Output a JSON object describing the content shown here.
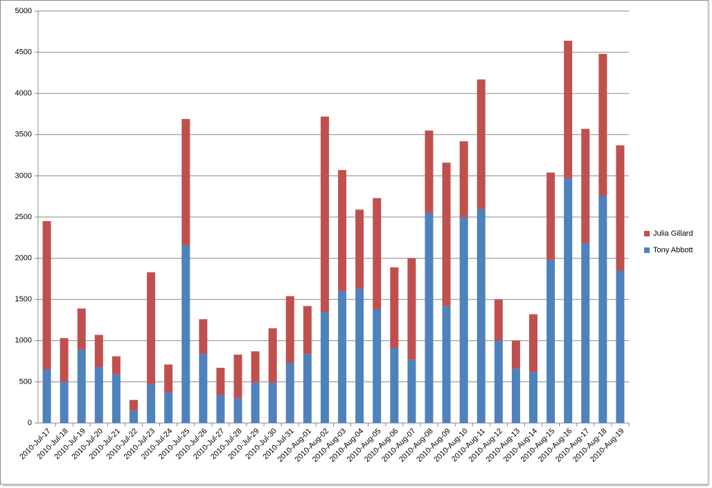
{
  "chart_data": {
    "type": "stacked_bar",
    "categories": [
      "2010-Jul-17",
      "2010-Jul-18",
      "2010-Jul-19",
      "2010-Jul-20",
      "2010-Jul-21",
      "2010-Jul-22",
      "2010-Jul-23",
      "2010-Jul-24",
      "2010-Jul-25",
      "2010-Jul-26",
      "2010-Jul-27",
      "2010-Jul-28",
      "2010-Jul-29",
      "2010-Jul-30",
      "2010-Jul-31",
      "2010-Aug-01",
      "2010-Aug-02",
      "2010-Aug-03",
      "2010-Aug-04",
      "2010-Aug-05",
      "2010-Aug-06",
      "2010-Aug-07",
      "2010-Aug-08",
      "2010-Aug-09",
      "2010-Aug-10",
      "2010-Aug-11",
      "2010-Aug-12",
      "2010-Aug-13",
      "2010-Aug-14",
      "2010-Aug-15",
      "2010-Aug-16",
      "2010-Aug-17",
      "2010-Aug-18",
      "2010-Aug-19"
    ],
    "series": [
      {
        "name": "Tony Abbott",
        "color": "#4f81bd",
        "values": [
          650,
          500,
          890,
          680,
          590,
          150,
          470,
          370,
          2160,
          840,
          340,
          300,
          490,
          490,
          730,
          840,
          1350,
          1600,
          1630,
          1380,
          910,
          770,
          2550,
          1420,
          2500,
          2600,
          1000,
          660,
          620,
          1980,
          2970,
          2180,
          2760,
          1850
        ]
      },
      {
        "name": "Julia Gillard",
        "color": "#c0504d",
        "values": [
          1800,
          530,
          500,
          390,
          220,
          130,
          1360,
          340,
          1530,
          420,
          330,
          530,
          380,
          660,
          810,
          580,
          2370,
          1470,
          960,
          1350,
          980,
          1230,
          1000,
          1740,
          920,
          1570,
          500,
          340,
          700,
          1060,
          1670,
          1390,
          1720,
          1520
        ]
      }
    ],
    "ylim": [
      0,
      5000
    ],
    "yticks": [
      0,
      500,
      1000,
      1500,
      2000,
      2500,
      3000,
      3500,
      4000,
      4500,
      5000
    ],
    "grid": true,
    "legend": "right"
  }
}
